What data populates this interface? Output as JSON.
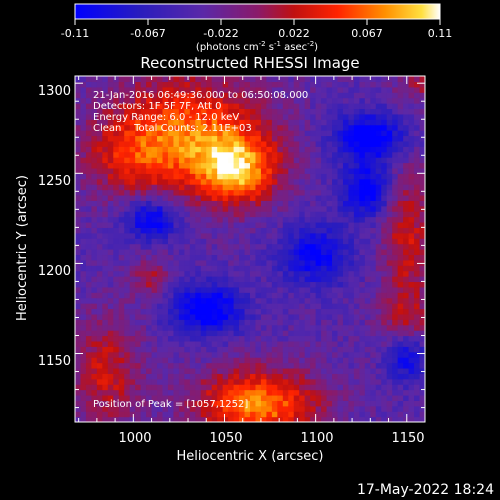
{
  "chart_data": {
    "type": "heatmap",
    "title": "Reconstructed RHESSI Image",
    "xlabel": "Heliocentric X (arcsec)",
    "ylabel": "Heliocentric Y (arcsec)",
    "xlim": [
      968,
      1160
    ],
    "ylim": [
      1112,
      1304
    ],
    "x_ticks": [
      1000,
      1050,
      1100,
      1150
    ],
    "y_ticks": [
      1150,
      1200,
      1250,
      1300
    ],
    "colorbar": {
      "range": [
        -0.11,
        0.11
      ],
      "ticks": [
        "-0.11",
        "-0.067",
        "-0.022",
        "0.022",
        "0.067",
        "0.11"
      ],
      "unit_text": "(photons cm",
      "unit_exp1": "-2",
      "unit_mid": " s",
      "unit_exp2": "-1",
      "unit_end": " asec",
      "unit_exp3": "-2",
      "unit_close": ")"
    },
    "annotations": [
      "21-Jan-2016 06:49:36.000 to 06:50:08.000",
      "Detectors: 1F 5F 7F, Att 0",
      "Energy Range: 6.0 - 12.0 keV",
      "Clean    Total Counts: 2.11E+03"
    ],
    "peak_label": "Position of Peak = [1057,1252]",
    "sources": [
      {
        "x": 1057,
        "y": 1252,
        "peak": 0.11,
        "sx": 16,
        "sy": 14
      },
      {
        "x": 1030,
        "y": 1275,
        "peak": 0.09,
        "sx": 30,
        "sy": 22
      },
      {
        "x": 1000,
        "y": 1258,
        "peak": 0.05,
        "sx": 20,
        "sy": 16
      },
      {
        "x": 1068,
        "y": 1122,
        "peak": 0.11,
        "sx": 24,
        "sy": 14
      },
      {
        "x": 985,
        "y": 1140,
        "peak": 0.06,
        "sx": 14,
        "sy": 22
      },
      {
        "x": 1010,
        "y": 1192,
        "peak": 0.045,
        "sx": 8,
        "sy": 8
      },
      {
        "x": 1150,
        "y": 1215,
        "peak": 0.06,
        "sx": 10,
        "sy": 30
      },
      {
        "x": 1150,
        "y": 1165,
        "peak": 0.05,
        "sx": 10,
        "sy": 12
      },
      {
        "x": 1160,
        "y": 1300,
        "peak": 0.04,
        "sx": 12,
        "sy": 8
      }
    ],
    "negative_regions": [
      {
        "x": 1130,
        "y": 1270,
        "peak": -0.09,
        "sx": 14,
        "sy": 10
      },
      {
        "x": 1128,
        "y": 1240,
        "peak": -0.085,
        "sx": 10,
        "sy": 10
      },
      {
        "x": 1040,
        "y": 1175,
        "peak": -0.09,
        "sx": 14,
        "sy": 10
      },
      {
        "x": 1010,
        "y": 1225,
        "peak": -0.085,
        "sx": 10,
        "sy": 8
      },
      {
        "x": 1150,
        "y": 1150,
        "peak": -0.085,
        "sx": 8,
        "sy": 10
      },
      {
        "x": 1100,
        "y": 1205,
        "peak": -0.07,
        "sx": 14,
        "sy": 12
      }
    ],
    "pixel_size_arcsec": 3
  },
  "footer": {
    "date": "17-May-2022 18:24"
  }
}
